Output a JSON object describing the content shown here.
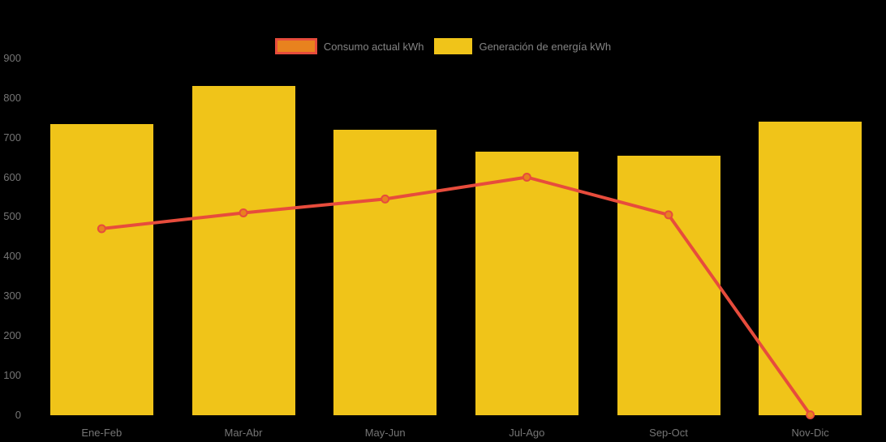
{
  "colors": {
    "background": "#000000",
    "axis_text": "#757575",
    "legend_text": "#848484",
    "bar_fill": "#F0C419",
    "line_stroke": "#E74C3C",
    "marker_fill": "#E8821E"
  },
  "legend": {
    "items": [
      {
        "label": "Consumo actual kWh",
        "swatch_fill": "#E8821E",
        "swatch_border": "#E74C3C"
      },
      {
        "label": "Generación de energía kWh",
        "swatch_fill": "#F0C419",
        "swatch_border": "#F0C419"
      }
    ]
  },
  "chart_data": {
    "type": "combo-bar-line",
    "title": "",
    "xlabel": "",
    "ylabel": "",
    "categories": [
      "Ene-Feb",
      "Mar-Abr",
      "May-Jun",
      "Jul-Ago",
      "Sep-Oct",
      "Nov-Dic"
    ],
    "series": [
      {
        "name": "Generación de energía kWh",
        "type": "bar",
        "color": "#F0C419",
        "values": [
          735,
          830,
          720,
          665,
          655,
          740
        ]
      },
      {
        "name": "Consumo actual kWh",
        "type": "line",
        "color": "#E74C3C",
        "marker_color": "#E8821E",
        "values": [
          470,
          510,
          545,
          600,
          505,
          0
        ]
      }
    ],
    "ylim": [
      0,
      900
    ],
    "yticks": [
      0,
      100,
      200,
      300,
      400,
      500,
      600,
      700,
      800,
      900
    ],
    "grid": false,
    "legend_position": "top-center",
    "background": "#000000"
  }
}
